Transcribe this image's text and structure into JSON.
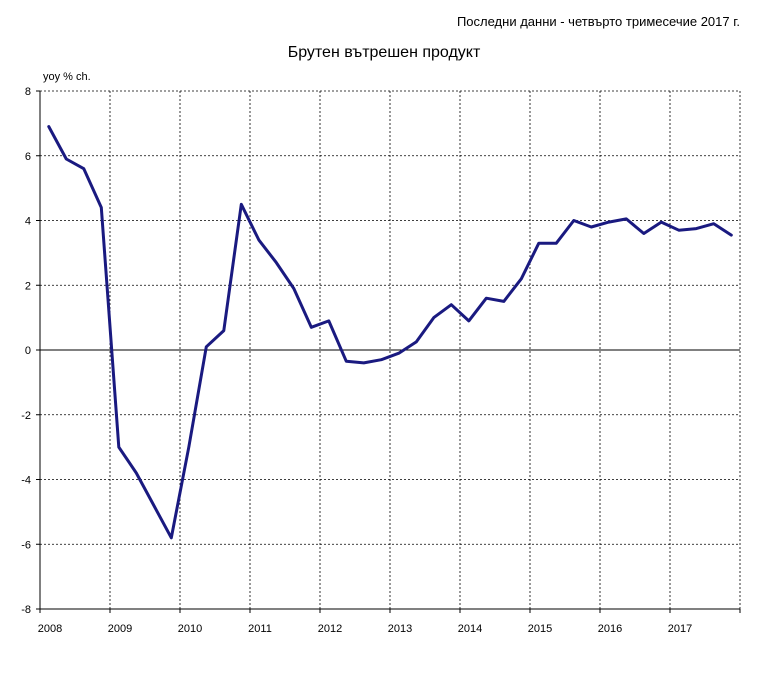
{
  "header": {
    "note": "Последни данни - четвърто тримесечие 2017 г."
  },
  "chart_data": {
    "type": "line",
    "title": "Брутен вътрешен продукт",
    "ylabel": "yoy % ch.",
    "xlabel": "",
    "ylim": [
      -8,
      8
    ],
    "y_ticks": [
      8,
      6,
      4,
      2,
      0,
      -2,
      -4,
      -6,
      -8
    ],
    "x_ticks": [
      "2008",
      "2009",
      "2010",
      "2011",
      "2012",
      "2013",
      "2014",
      "2015",
      "2016",
      "2017"
    ],
    "grid": true,
    "line_color": "#1a1a80",
    "series": [
      {
        "x": [
          "2008Q1",
          "2008Q2",
          "2008Q3",
          "2008Q4",
          "2009Q1",
          "2009Q2",
          "2009Q3",
          "2009Q4",
          "2010Q1",
          "2010Q2",
          "2010Q3",
          "2010Q4",
          "2011Q1",
          "2011Q2",
          "2011Q3",
          "2011Q4",
          "2012Q1",
          "2012Q2",
          "2012Q3",
          "2012Q4",
          "2013Q1",
          "2013Q2",
          "2013Q3",
          "2013Q4",
          "2014Q1",
          "2014Q2",
          "2014Q3",
          "2014Q4",
          "2015Q1",
          "2015Q2",
          "2015Q3",
          "2015Q4",
          "2016Q1",
          "2016Q2",
          "2016Q3",
          "2016Q4",
          "2017Q1",
          "2017Q2",
          "2017Q3",
          "2017Q4"
        ],
        "values": [
          6.9,
          5.9,
          5.6,
          4.4,
          -3.0,
          -3.8,
          -4.8,
          -5.8,
          -3.0,
          0.1,
          0.6,
          4.5,
          3.4,
          2.7,
          1.9,
          0.7,
          0.9,
          -0.35,
          -0.4,
          -0.3,
          -0.1,
          0.25,
          1.0,
          1.4,
          0.9,
          1.6,
          1.5,
          2.2,
          3.3,
          3.3,
          4.0,
          3.8,
          3.95,
          4.05,
          3.6,
          3.95,
          3.7,
          3.75,
          3.9,
          3.55
        ]
      }
    ]
  }
}
